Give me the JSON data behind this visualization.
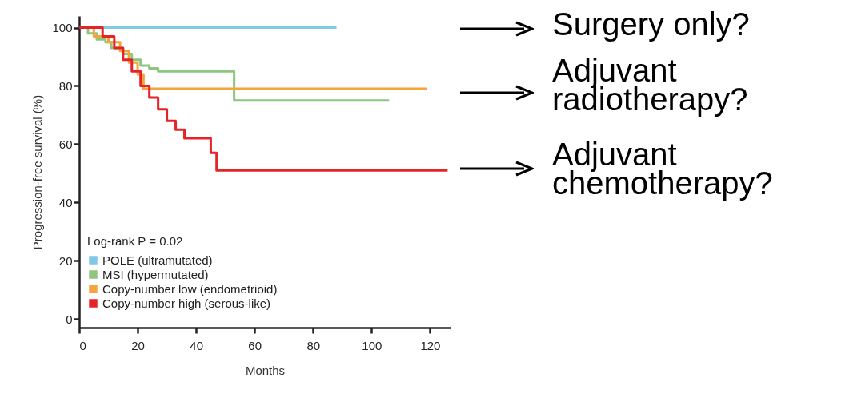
{
  "chart_data": {
    "type": "step",
    "xlabel": "Months",
    "ylabel": "Progression-free survival (%)",
    "legend_title": "Log-rank P = 0.02",
    "legend": "bottom left",
    "line_style": "solid",
    "xlim": [
      0,
      127
    ],
    "xticks": [
      0,
      20,
      40,
      60,
      80,
      100,
      120
    ],
    "ylim": [
      -3,
      104
    ],
    "yticks": [
      0,
      20,
      40,
      60,
      80,
      100
    ],
    "series": [
      {
        "name": "POLE (ultramutated)",
        "color": "#7ec8e8",
        "x": [
          0,
          88
        ],
        "values": [
          100,
          100
        ]
      },
      {
        "name": "MSI (hypermutated)",
        "color": "#8dc67f",
        "x": [
          0,
          3,
          6,
          9,
          11,
          15,
          18,
          21,
          24,
          27,
          53,
          106
        ],
        "values": [
          100,
          98,
          96,
          95,
          93,
          91,
          89,
          87,
          86,
          85,
          75,
          75
        ]
      },
      {
        "name": "Copy-number low (endometrioid)",
        "color": "#f5a43a",
        "x": [
          0,
          5,
          10,
          14,
          17,
          20,
          22,
          119
        ],
        "values": [
          100,
          97,
          95,
          92,
          88,
          84,
          79,
          79
        ]
      },
      {
        "name": "Copy-number high (serous-like)",
        "color": "#e42428",
        "x": [
          0,
          8,
          12,
          15,
          18,
          21,
          24,
          27,
          30,
          33,
          36,
          45,
          47,
          126
        ],
        "values": [
          100,
          97,
          93,
          89,
          85,
          80,
          76,
          72,
          68,
          65,
          62,
          57,
          51,
          51
        ]
      }
    ],
    "annotations": [
      "Surgery only?",
      "Adjuvant radiotherapy?",
      "Adjuvant chemotherapy?"
    ]
  }
}
